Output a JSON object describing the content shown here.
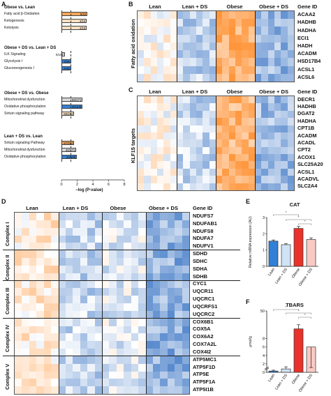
{
  "panels": {
    "A": "A",
    "B": "B",
    "C": "C",
    "D": "D",
    "E": "E",
    "F": "F"
  },
  "panelA": {
    "groups": [
      {
        "title": "Obese vs. Lean",
        "items": [
          {
            "label": "Fatty acid β-Oxidation",
            "value": "9/22",
            "frac": 0.41,
            "color": "#f2a65a"
          },
          {
            "label": "Ketogenesis",
            "value": "4/10",
            "frac": 0.4,
            "color": "#f8dfc0"
          },
          {
            "label": "Ketolysis",
            "value": "4/10",
            "frac": 0.4,
            "color": "#f8dfc0"
          }
        ]
      },
      {
        "title": "Obese + DS vs. Lean + DS",
        "items": [
          {
            "label": "ILK Signaling",
            "value": "9/197",
            "frac": 0.05,
            "color": "#d9d9d9"
          },
          {
            "label": "Glycolysis I",
            "value": "4/26",
            "frac": 0.15,
            "color": "#2f80d6"
          },
          {
            "label": "Gluconeogenesis I",
            "value": "4/26",
            "frac": 0.15,
            "color": "#2f80d6"
          }
        ]
      },
      {
        "title": "Obese + DS vs. Obese",
        "items": [
          {
            "label": "Mitochondrial dysfunction",
            "value": "56/171",
            "frac": 0.33,
            "color": "#d9d9d9"
          },
          {
            "label": "Oxidative phosphorylation",
            "value": "36/109",
            "frac": 0.33,
            "color": "#2f80d6"
          },
          {
            "label": "Sirtuin signaling pathway",
            "value": "59/292",
            "frac": 0.2,
            "color": "#f8dfc0"
          }
        ]
      },
      {
        "title": "Lean + DS vs. Lean",
        "items": [
          {
            "label": "Sirtuin signaling Pathway",
            "value": "57/292",
            "frac": 0.2,
            "color": "#f2a65a"
          },
          {
            "label": "Mitochondrial dysfunction",
            "value": "40/171",
            "frac": 0.23,
            "color": "#d9d9d9"
          },
          {
            "label": "Oxidative phosphorylation",
            "value": "26/109",
            "frac": 0.24,
            "color": "#2f80d6"
          }
        ]
      }
    ],
    "xticks": [
      "0",
      "2",
      "4",
      "6",
      "8"
    ],
    "xlabel": "−log (P-value)"
  },
  "panelB": {
    "columns": [
      "Lean",
      "Lean + DS",
      "Obese",
      "Obese + DS"
    ],
    "gene_header": "Gene ID",
    "side_label": "Fatty acid oxidation",
    "genes": [
      "ACAA2",
      "HADHB",
      "HADHA",
      "ECI1",
      "HADH",
      "ACADM",
      "HSD17B4",
      "ACSL1",
      "ACSL6"
    ]
  },
  "panelC": {
    "columns": [
      "Lean",
      "Lean + DS",
      "Obese",
      "Obese + DS"
    ],
    "gene_header": "Gene ID",
    "side_label": "KLF15 targets",
    "genes": [
      "DECR1",
      "HADHB",
      "DGAT2",
      "HADHA",
      "CPT1B",
      "ACADM",
      "ACADL",
      "CPT2",
      "ACOX1",
      "SLC25A20",
      "ACSL1",
      "ACADVL",
      "SLC2A4"
    ]
  },
  "panelD": {
    "columns": [
      "Lean",
      "Lean + DS",
      "Obese",
      "Obese + DS"
    ],
    "gene_header": "Gene ID",
    "complexes": [
      {
        "name": "Complex I",
        "genes": [
          "NDUFS7",
          "NDUFAB1",
          "NDUFS8",
          "NDUFA7",
          "NDUFV1"
        ]
      },
      {
        "name": "Complex II",
        "genes": [
          "SDHD",
          "SDHC",
          "SDHA",
          "SDHB"
        ]
      },
      {
        "name": "Complex III",
        "genes": [
          "CYC1",
          "UQCR11",
          "UQCRC1",
          "UQCRFS1",
          "UQCRC2"
        ]
      },
      {
        "name": "Complex IV",
        "genes": [
          "COX6B1",
          "COX5A",
          "COX6A2",
          "COX7A2L",
          "COX4I2"
        ]
      },
      {
        "name": "Complex V",
        "genes": [
          "ATP5MC1",
          "ATP5F1D",
          "ATP5E",
          "ATP5F1A",
          "ATP5I1B"
        ]
      }
    ]
  },
  "panelE": {
    "chart_data": {
      "type": "bar",
      "title": "CAT",
      "categories": [
        "Lean",
        "Lean + DS",
        "Obese",
        "Obese + DS"
      ],
      "values": [
        1.55,
        1.33,
        2.33,
        1.65
      ],
      "errors": [
        0.07,
        0.06,
        0.12,
        0.1
      ],
      "ylabel": "Relative mRNA expression (AU)",
      "ylim": [
        0,
        3
      ],
      "yticks": [
        "0",
        "1",
        "2",
        "3"
      ],
      "sig": [
        "*",
        "*",
        "*"
      ],
      "colors": [
        "#2f80d6",
        "#cfe3f5",
        "#e8322a",
        "#f9c9c3"
      ]
    }
  },
  "panelF": {
    "chart_data": {
      "type": "bar",
      "title": "TBARS",
      "categories": [
        "Lean",
        "Lean + DS",
        "Obese",
        "Obese + DS"
      ],
      "values": [
        0.3,
        0.8,
        37,
        6
      ],
      "errors": [
        0.2,
        0.5,
        3,
        3
      ],
      "ylabel": "μmol/g",
      "ylim": [
        0,
        50
      ],
      "yticks": [
        "0",
        "2",
        "4",
        "6",
        "8",
        "50"
      ],
      "sig": [
        "*",
        "*",
        "*"
      ],
      "colors": [
        "#2f80d6",
        "#cfe3f5",
        "#e8322a",
        "#f9c9c3"
      ]
    }
  }
}
